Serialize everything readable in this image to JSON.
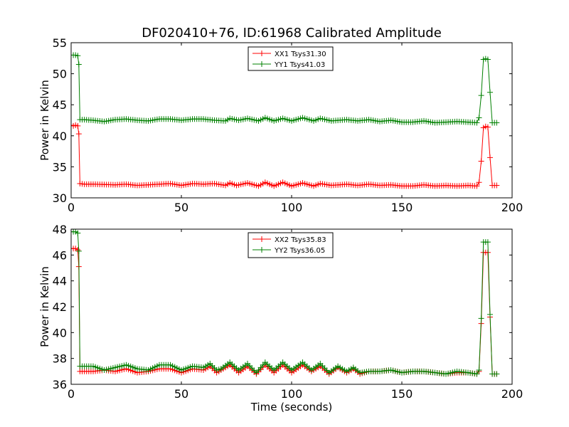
{
  "chart_data": [
    {
      "type": "line",
      "title": "DF020410+76, ID:61968 Calibrated Amplitude",
      "xlabel": "",
      "ylabel": "Power in Kelvin",
      "xlim": [
        0,
        200
      ],
      "ylim": [
        30,
        55
      ],
      "xticks": [
        "0",
        "50",
        "100",
        "150",
        "200"
      ],
      "yticks": [
        "30",
        "35",
        "40",
        "45",
        "50",
        "55"
      ],
      "grid": false,
      "legend_position": "top-center",
      "series": [
        {
          "name": "XX1 Tsys31.30",
          "color": "#ff0000",
          "points": [
            [
              0,
              41.7
            ],
            [
              1,
              41.6
            ],
            [
              2,
              41.7
            ],
            [
              3,
              41.6
            ],
            [
              3.5,
              40.3
            ],
            [
              4,
              32.3
            ],
            [
              6,
              32.2
            ],
            [
              10,
              32.2
            ],
            [
              20,
              32.1
            ],
            [
              25,
              32.2
            ],
            [
              30,
              32.0
            ],
            [
              40,
              32.2
            ],
            [
              45,
              32.3
            ],
            [
              50,
              32.0
            ],
            [
              55,
              32.3
            ],
            [
              60,
              32.2
            ],
            [
              65,
              32.3
            ],
            [
              70,
              32.0
            ],
            [
              72,
              32.4
            ],
            [
              75,
              32.0
            ],
            [
              80,
              32.4
            ],
            [
              85,
              31.9
            ],
            [
              88,
              32.5
            ],
            [
              92,
              31.9
            ],
            [
              96,
              32.5
            ],
            [
              100,
              31.9
            ],
            [
              105,
              32.4
            ],
            [
              110,
              31.9
            ],
            [
              113,
              32.3
            ],
            [
              118,
              32.0
            ],
            [
              125,
              32.2
            ],
            [
              130,
              32.0
            ],
            [
              135,
              32.2
            ],
            [
              140,
              32.0
            ],
            [
              145,
              32.1
            ],
            [
              150,
              31.9
            ],
            [
              155,
              31.9
            ],
            [
              160,
              32.1
            ],
            [
              165,
              31.9
            ],
            [
              170,
              32.0
            ],
            [
              175,
              31.9
            ],
            [
              180,
              32.0
            ],
            [
              184,
              31.9
            ],
            [
              185,
              32.5
            ],
            [
              186,
              35.9
            ],
            [
              187,
              41.3
            ],
            [
              188,
              41.5
            ],
            [
              189,
              41.4
            ],
            [
              190,
              36.5
            ],
            [
              191,
              32.0
            ],
            [
              192,
              32.0
            ],
            [
              193,
              32.0
            ]
          ]
        },
        {
          "name": "YY1 Tsys41.03",
          "color": "#008000",
          "points": [
            [
              0,
              53.0
            ],
            [
              1,
              53.0
            ],
            [
              2,
              53.0
            ],
            [
              3,
              52.9
            ],
            [
              3.5,
              51.5
            ],
            [
              4,
              42.6
            ],
            [
              6,
              42.6
            ],
            [
              10,
              42.5
            ],
            [
              15,
              42.3
            ],
            [
              20,
              42.6
            ],
            [
              25,
              42.7
            ],
            [
              30,
              42.5
            ],
            [
              35,
              42.4
            ],
            [
              40,
              42.7
            ],
            [
              45,
              42.7
            ],
            [
              50,
              42.5
            ],
            [
              55,
              42.7
            ],
            [
              60,
              42.7
            ],
            [
              65,
              42.5
            ],
            [
              70,
              42.4
            ],
            [
              72,
              42.8
            ],
            [
              76,
              42.5
            ],
            [
              80,
              42.8
            ],
            [
              85,
              42.4
            ],
            [
              88,
              42.9
            ],
            [
              92,
              42.4
            ],
            [
              96,
              42.8
            ],
            [
              100,
              42.4
            ],
            [
              105,
              42.9
            ],
            [
              110,
              42.4
            ],
            [
              113,
              42.8
            ],
            [
              118,
              42.4
            ],
            [
              125,
              42.6
            ],
            [
              130,
              42.4
            ],
            [
              135,
              42.6
            ],
            [
              140,
              42.3
            ],
            [
              145,
              42.5
            ],
            [
              150,
              42.2
            ],
            [
              155,
              42.2
            ],
            [
              160,
              42.4
            ],
            [
              165,
              42.1
            ],
            [
              170,
              42.2
            ],
            [
              175,
              42.3
            ],
            [
              180,
              42.2
            ],
            [
              184,
              42.1
            ],
            [
              185,
              42.9
            ],
            [
              186,
              46.5
            ],
            [
              187,
              52.3
            ],
            [
              188,
              52.4
            ],
            [
              189,
              52.3
            ],
            [
              190,
              47.0
            ],
            [
              191,
              42.1
            ],
            [
              192,
              42.1
            ],
            [
              193,
              42.1
            ]
          ]
        }
      ]
    },
    {
      "type": "line",
      "title": "",
      "xlabel": "Time (seconds)",
      "ylabel": "Power in Kelvin",
      "xlim": [
        0,
        200
      ],
      "ylim": [
        36,
        48
      ],
      "xticks": [
        "0",
        "50",
        "100",
        "150",
        "200"
      ],
      "yticks": [
        "36",
        "38",
        "40",
        "42",
        "44",
        "46",
        "48"
      ],
      "grid": false,
      "legend_position": "top-center",
      "series": [
        {
          "name": "XX2 Tsys35.83",
          "color": "#ff0000",
          "points": [
            [
              0,
              46.5
            ],
            [
              1,
              46.5
            ],
            [
              2,
              46.5
            ],
            [
              3,
              46.4
            ],
            [
              3.5,
              45.1
            ],
            [
              4,
              37.0
            ],
            [
              6,
              37.0
            ],
            [
              10,
              37.0
            ],
            [
              15,
              37.1
            ],
            [
              20,
              37.0
            ],
            [
              25,
              37.2
            ],
            [
              30,
              36.9
            ],
            [
              35,
              37.0
            ],
            [
              40,
              37.2
            ],
            [
              45,
              37.2
            ],
            [
              50,
              36.9
            ],
            [
              55,
              37.2
            ],
            [
              60,
              37.1
            ],
            [
              63,
              37.4
            ],
            [
              66,
              36.9
            ],
            [
              68,
              37.1
            ],
            [
              72,
              37.5
            ],
            [
              76,
              36.9
            ],
            [
              80,
              37.4
            ],
            [
              84,
              36.8
            ],
            [
              88,
              37.5
            ],
            [
              92,
              36.9
            ],
            [
              96,
              37.5
            ],
            [
              100,
              36.9
            ],
            [
              105,
              37.5
            ],
            [
              109,
              37.0
            ],
            [
              113,
              37.4
            ],
            [
              117,
              36.8
            ],
            [
              121,
              37.3
            ],
            [
              125,
              36.9
            ],
            [
              128,
              37.2
            ],
            [
              131,
              36.8
            ],
            [
              135,
              37.0
            ],
            [
              140,
              37.0
            ],
            [
              145,
              37.1
            ],
            [
              150,
              36.9
            ],
            [
              155,
              37.0
            ],
            [
              160,
              37.0
            ],
            [
              165,
              36.9
            ],
            [
              170,
              36.8
            ],
            [
              175,
              36.9
            ],
            [
              180,
              36.9
            ],
            [
              184,
              36.8
            ],
            [
              185,
              37.0
            ],
            [
              186,
              40.7
            ],
            [
              187,
              46.2
            ],
            [
              188,
              46.2
            ],
            [
              189,
              46.2
            ],
            [
              190,
              41.2
            ],
            [
              191,
              36.8
            ],
            [
              192,
              36.8
            ],
            [
              193,
              36.8
            ]
          ]
        },
        {
          "name": "YY2 Tsys36.05",
          "color": "#008000",
          "points": [
            [
              0,
              47.8
            ],
            [
              1,
              47.8
            ],
            [
              2,
              47.8
            ],
            [
              3,
              47.7
            ],
            [
              3.5,
              46.3
            ],
            [
              4,
              37.4
            ],
            [
              6,
              37.4
            ],
            [
              10,
              37.4
            ],
            [
              15,
              37.1
            ],
            [
              20,
              37.3
            ],
            [
              25,
              37.5
            ],
            [
              30,
              37.2
            ],
            [
              35,
              37.1
            ],
            [
              40,
              37.5
            ],
            [
              45,
              37.5
            ],
            [
              50,
              37.1
            ],
            [
              55,
              37.4
            ],
            [
              60,
              37.3
            ],
            [
              63,
              37.6
            ],
            [
              66,
              37.1
            ],
            [
              68,
              37.2
            ],
            [
              72,
              37.7
            ],
            [
              76,
              37.1
            ],
            [
              80,
              37.6
            ],
            [
              84,
              36.9
            ],
            [
              88,
              37.7
            ],
            [
              92,
              37.1
            ],
            [
              96,
              37.7
            ],
            [
              100,
              37.1
            ],
            [
              105,
              37.7
            ],
            [
              109,
              37.1
            ],
            [
              113,
              37.6
            ],
            [
              117,
              36.9
            ],
            [
              121,
              37.4
            ],
            [
              125,
              37.0
            ],
            [
              128,
              37.3
            ],
            [
              131,
              36.9
            ],
            [
              135,
              37.0
            ],
            [
              140,
              37.0
            ],
            [
              145,
              37.1
            ],
            [
              150,
              36.9
            ],
            [
              155,
              37.0
            ],
            [
              160,
              37.0
            ],
            [
              165,
              36.9
            ],
            [
              170,
              36.8
            ],
            [
              175,
              37.0
            ],
            [
              180,
              36.9
            ],
            [
              184,
              36.8
            ],
            [
              185,
              37.1
            ],
            [
              186,
              41.1
            ],
            [
              187,
              47.0
            ],
            [
              188,
              47.0
            ],
            [
              189,
              47.0
            ],
            [
              190,
              41.4
            ],
            [
              191,
              36.8
            ],
            [
              192,
              36.8
            ],
            [
              193,
              36.8
            ]
          ]
        }
      ]
    }
  ]
}
